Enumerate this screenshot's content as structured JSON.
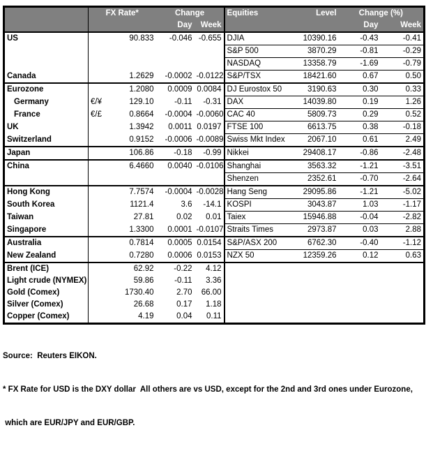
{
  "colors": {
    "header_bg": "#808080",
    "header_text": "#ffffff",
    "border": "#000000",
    "text": "#000000",
    "page_bg": "#ffffff"
  },
  "header": {
    "fx_rate": "FX Rate*",
    "fx_change": "Change",
    "fx_day": "Day",
    "fx_week": "Week",
    "equities": "Equities",
    "level": "Level",
    "eq_change": "Change (%)",
    "eq_day": "Day",
    "eq_week": "Week"
  },
  "rows": [
    {
      "fx": {
        "label": "US",
        "pair": "",
        "rate": "90.833",
        "day": "-0.046",
        "week": "-0.655",
        "indent": false
      },
      "eq": {
        "label": "DJIA",
        "level": "10390.16",
        "day": "-0.43",
        "week": "-0.41"
      },
      "thick_top": false
    },
    {
      "fx": {
        "label": "",
        "pair": "",
        "rate": "",
        "day": "",
        "week": "",
        "indent": false
      },
      "eq": {
        "label": "S&P 500",
        "level": "3870.29",
        "day": "-0.81",
        "week": "-0.29"
      },
      "thick_top": false
    },
    {
      "fx": {
        "label": "",
        "pair": "",
        "rate": "",
        "day": "",
        "week": "",
        "indent": false
      },
      "eq": {
        "label": "NASDAQ",
        "level": "13358.79",
        "day": "-1.69",
        "week": "-0.79"
      },
      "thick_top": false
    },
    {
      "fx": {
        "label": "Canada",
        "pair": "",
        "rate": "1.2629",
        "day": "-0.0002",
        "week": "-0.0122",
        "indent": false
      },
      "eq": {
        "label": "S&P/TSX",
        "level": "18421.60",
        "day": "0.67",
        "week": "0.50"
      },
      "thick_top": false
    },
    {
      "fx": {
        "label": "Eurozone",
        "pair": "",
        "rate": "1.2080",
        "day": "0.0009",
        "week": "0.0084",
        "indent": false
      },
      "eq": {
        "label": "DJ Eurostox 50",
        "level": "3190.63",
        "day": "0.30",
        "week": "0.33"
      },
      "thick_top": true
    },
    {
      "fx": {
        "label": "Germany",
        "pair": "€/¥",
        "rate": "129.10",
        "day": "-0.11",
        "week": "-0.31",
        "indent": true
      },
      "eq": {
        "label": "DAX",
        "level": "14039.80",
        "day": "0.19",
        "week": "1.26"
      },
      "thick_top": false
    },
    {
      "fx": {
        "label": "France",
        "pair": "€/£",
        "rate": "0.8664",
        "day": "-0.0004",
        "week": "-0.0060",
        "indent": true
      },
      "eq": {
        "label": "CAC 40",
        "level": "5809.73",
        "day": "0.29",
        "week": "0.52"
      },
      "thick_top": false
    },
    {
      "fx": {
        "label": "UK",
        "pair": "",
        "rate": "1.3942",
        "day": "0.0011",
        "week": "0.0197",
        "indent": false
      },
      "eq": {
        "label": "FTSE 100",
        "level": "6613.75",
        "day": "0.38",
        "week": "-0.18"
      },
      "thick_top": false
    },
    {
      "fx": {
        "label": "Switzerland",
        "pair": "",
        "rate": "0.9152",
        "day": "-0.0006",
        "week": "-0.0089",
        "indent": false
      },
      "eq": {
        "label": "Swiss Mkt Index",
        "level": "2067.10",
        "day": "0.61",
        "week": "2.49"
      },
      "thick_top": false
    },
    {
      "fx": {
        "label": "Japan",
        "pair": "",
        "rate": "106.86",
        "day": "-0.18",
        "week": "-0.99",
        "indent": false
      },
      "eq": {
        "label": "Nikkei",
        "level": "29408.17",
        "day": "-0.86",
        "week": "-2.48"
      },
      "thick_top": true
    },
    {
      "fx": {
        "label": "China",
        "pair": "",
        "rate": "6.4660",
        "day": "0.0040",
        "week": "-0.0106",
        "indent": false
      },
      "eq": {
        "label": "Shanghai",
        "level": "3563.32",
        "day": "-1.21",
        "week": "-3.51"
      },
      "thick_top": true
    },
    {
      "fx": {
        "label": "",
        "pair": "",
        "rate": "",
        "day": "",
        "week": "",
        "indent": false
      },
      "eq": {
        "label": "Shenzen",
        "level": "2352.61",
        "day": "-0.70",
        "week": "-2.64"
      },
      "thick_top": false
    },
    {
      "fx": {
        "label": "Hong Kong",
        "pair": "",
        "rate": "7.7574",
        "day": "-0.0004",
        "week": "-0.0028",
        "indent": false
      },
      "eq": {
        "label": "Hang Seng",
        "level": "29095.86",
        "day": "-1.21",
        "week": "-5.02"
      },
      "thick_top": true
    },
    {
      "fx": {
        "label": "South Korea",
        "pair": "",
        "rate": "1121.4",
        "day": "3.6",
        "week": "-14.1",
        "indent": false
      },
      "eq": {
        "label": "KOSPI",
        "level": "3043.87",
        "day": "1.03",
        "week": "-1.17"
      },
      "thick_top": false
    },
    {
      "fx": {
        "label": "Taiwan",
        "pair": "",
        "rate": "27.81",
        "day": "0.02",
        "week": "0.01",
        "indent": false
      },
      "eq": {
        "label": "Taiex",
        "level": "15946.88",
        "day": "-0.04",
        "week": "-2.82"
      },
      "thick_top": false
    },
    {
      "fx": {
        "label": "Singapore",
        "pair": "",
        "rate": "1.3300",
        "day": "0.0001",
        "week": "-0.0107",
        "indent": false
      },
      "eq": {
        "label": "Straits Times",
        "level": "2973.87",
        "day": "0.03",
        "week": "2.88"
      },
      "thick_top": false
    },
    {
      "fx": {
        "label": "Australia",
        "pair": "",
        "rate": "0.7814",
        "day": "0.0005",
        "week": "0.0154",
        "indent": false
      },
      "eq": {
        "label": "S&P/ASX 200",
        "level": "6762.30",
        "day": "-0.40",
        "week": "-1.12"
      },
      "thick_top": true
    },
    {
      "fx": {
        "label": "New Zealand",
        "pair": "",
        "rate": "0.7280",
        "day": "0.0006",
        "week": "0.0153",
        "indent": false
      },
      "eq": {
        "label": "NZX 50",
        "level": "12359.26",
        "day": "0.12",
        "week": "0.63"
      },
      "thick_top": false
    },
    {
      "fx": {
        "label": "Brent (ICE)",
        "pair": "",
        "rate": "62.92",
        "day": "-0.22",
        "week": "4.12",
        "indent": false
      },
      "eq": null,
      "thick_top": true
    },
    {
      "fx": {
        "label": "Light crude (NYMEX)",
        "pair": "",
        "rate": "59.86",
        "day": "-0.11",
        "week": "3.36",
        "indent": false
      },
      "eq": null,
      "thick_top": false
    },
    {
      "fx": {
        "label": "Gold (Comex)",
        "pair": "",
        "rate": "1730.40",
        "day": "2.70",
        "week": "66.00",
        "indent": false
      },
      "eq": null,
      "thick_top": false
    },
    {
      "fx": {
        "label": "Silver (Comex)",
        "pair": "",
        "rate": "26.68",
        "day": "0.17",
        "week": "1.18",
        "indent": false
      },
      "eq": null,
      "thick_top": false
    },
    {
      "fx": {
        "label": "Copper (Comex)",
        "pair": "",
        "rate": "4.19",
        "day": "0.04",
        "week": "0.11",
        "indent": false
      },
      "eq": null,
      "thick_top": false
    }
  ],
  "footer": {
    "source": "Source:  Reuters EIKON.",
    "note_line1": "* FX Rate for USD is the DXY dollar  All others are vs USD, except for the 2nd and 3rd ones under Eurozone,",
    "note_line2": " which are EUR/JPY and EUR/GBP."
  }
}
